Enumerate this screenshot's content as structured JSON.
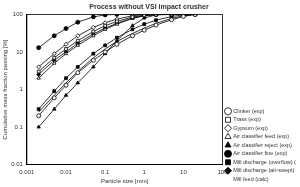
{
  "chart_data": {
    "type": "line",
    "title": "Process without VSI impact crusher",
    "x_label": "Particle size [mm]",
    "y_label": "Cumulative mass fraction passing [%]",
    "log": true,
    "grid": false,
    "legend": "right",
    "xlim": [
      0.001,
      100
    ],
    "xticks": [
      0.001,
      0.01,
      0.1,
      1,
      10,
      100
    ],
    "ylim": [
      0.01,
      100
    ],
    "yticks": [
      0.01,
      0.1,
      1,
      10,
      100
    ],
    "x": [
      0.002,
      0.005,
      0.01,
      0.02,
      0.05,
      0.1,
      0.2,
      0.5,
      1,
      2,
      5,
      10,
      20
    ],
    "series": [
      {
        "name": "Clinker (exp)",
        "color": "#000000",
        "marker": "circle_open",
        "line_style": "solid",
        "values": [
          0.2,
          0.6,
          1.3,
          2.8,
          6,
          10,
          16,
          27,
          38,
          52,
          72,
          88,
          100
        ]
      },
      {
        "name": "Trass (exp)",
        "color": "#000000",
        "marker": "square_open",
        "line_style": "solid",
        "values": [
          3,
          7,
          12,
          20,
          35,
          50,
          65,
          85,
          95,
          99,
          100,
          100,
          100
        ]
      },
      {
        "name": "Gypsum (exp)",
        "color": "#000000",
        "marker": "diamond_open",
        "line_style": "solid",
        "values": [
          4,
          9,
          16,
          27,
          45,
          60,
          75,
          92,
          99,
          100,
          100,
          100,
          100
        ]
      },
      {
        "name": "Air classifier feed (exp)",
        "color": "#000000",
        "marker": "triangle_open",
        "line_style": "solid",
        "values": [
          2,
          5,
          9,
          15,
          27,
          40,
          55,
          78,
          92,
          99,
          100,
          100,
          100
        ]
      },
      {
        "name": "Air classifier reject (exp)",
        "color": "#000000",
        "marker": "triangle",
        "line_style": "solid",
        "values": [
          0.1,
          0.3,
          0.7,
          1.5,
          4,
          9,
          20,
          50,
          80,
          97,
          100,
          100,
          100
        ]
      },
      {
        "name": "Air classifier fine (exp)",
        "color": "#000000",
        "marker": "circle",
        "line_style": "solid",
        "values": [
          13,
          27,
          42,
          62,
          86,
          97,
          100,
          100,
          100,
          100,
          100,
          100,
          100
        ]
      },
      {
        "name": "Mill discharge (overflow) (exp)",
        "color": "#000000",
        "marker": "square",
        "line_style": "solid",
        "values": [
          0.3,
          0.9,
          2,
          4,
          9,
          15,
          24,
          40,
          55,
          70,
          88,
          97,
          100
        ]
      },
      {
        "name": "Mill discharge (air-swept) (exp)",
        "color": "#000000",
        "marker": "diamond",
        "line_style": "solid",
        "values": [
          2.5,
          6,
          10,
          17,
          30,
          43,
          58,
          80,
          93,
          99,
          100,
          100,
          100
        ]
      },
      {
        "name": "Mill feed (calc)",
        "color": "#000000",
        "marker": "none",
        "line_style": "solid",
        "values": [
          0.25,
          0.7,
          1.5,
          3,
          7,
          12,
          19,
          31,
          43,
          58,
          78,
          92,
          100
        ]
      }
    ]
  }
}
